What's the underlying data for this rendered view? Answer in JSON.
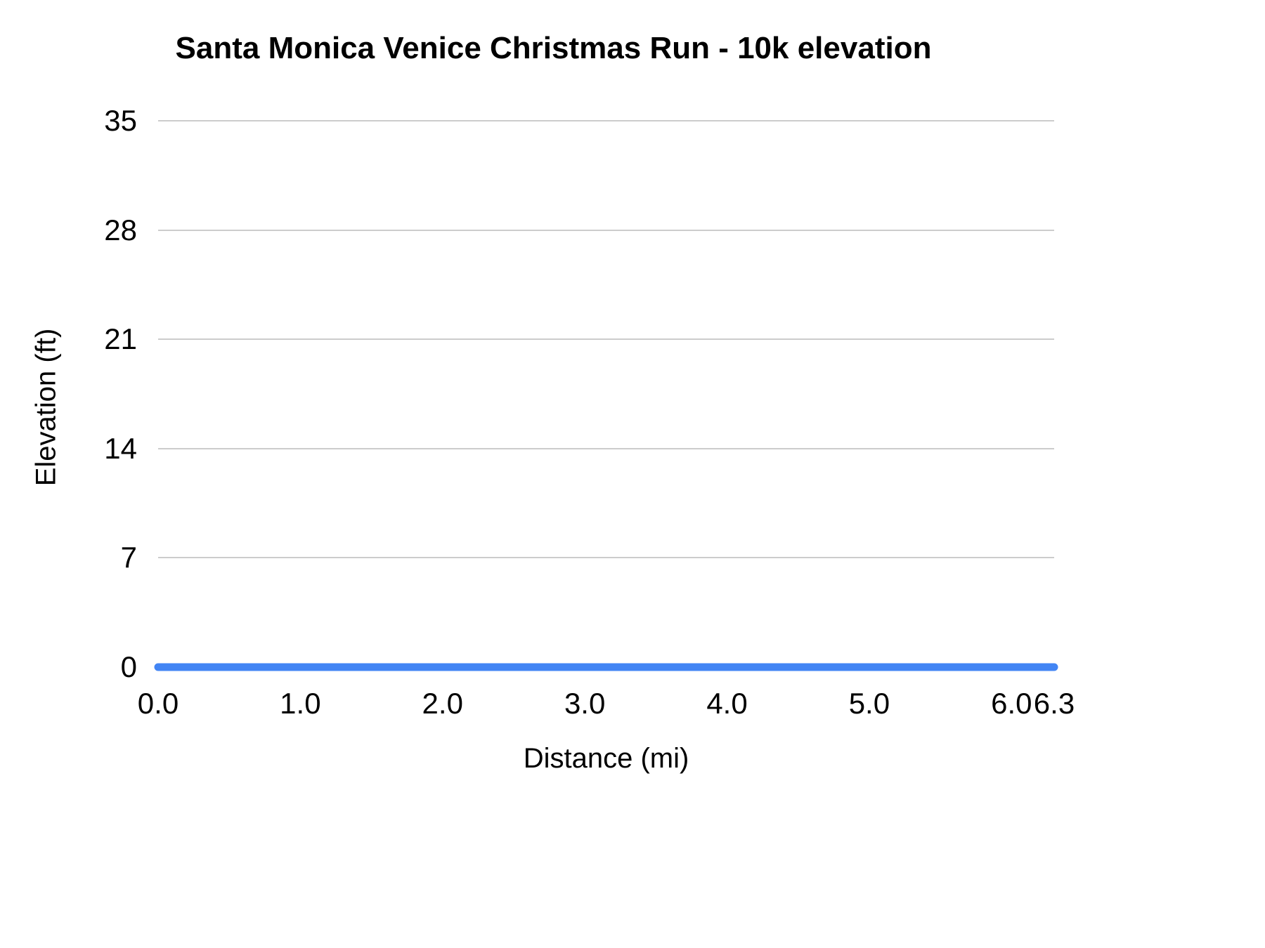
{
  "chart_data": {
    "type": "line",
    "title": "Santa Monica Venice Christmas Run - 10k elevation",
    "xlabel": "Distance (mi)",
    "ylabel": "Elevation (ft)",
    "xlim": [
      0,
      6.3
    ],
    "ylim": [
      0,
      35
    ],
    "y_ticks": [
      0,
      7,
      14,
      21,
      28,
      35
    ],
    "y_tick_labels": [
      "0",
      "7",
      "14",
      "21",
      "28",
      "35"
    ],
    "x_ticks": [
      0,
      1,
      2,
      3,
      4,
      5,
      6,
      6.3
    ],
    "x_tick_labels": [
      "0.0",
      "1.0",
      "2.0",
      "3.0",
      "4.0",
      "5.0",
      "6.0",
      "6.3"
    ],
    "grid": "horizontal",
    "gridline_color": "#cccccc",
    "legend": "none",
    "background_color": "#ffffff",
    "series": [
      {
        "name": "Elevation",
        "color": "#4285f4",
        "line_width": 11,
        "x": [
          0,
          0.5,
          1,
          1.5,
          2,
          2.5,
          3,
          3.5,
          4,
          4.5,
          5,
          5.5,
          6,
          6.3
        ],
        "y": [
          0,
          0,
          0,
          0,
          0,
          0,
          0,
          0,
          0,
          0,
          0,
          0,
          0,
          0
        ]
      }
    ]
  }
}
